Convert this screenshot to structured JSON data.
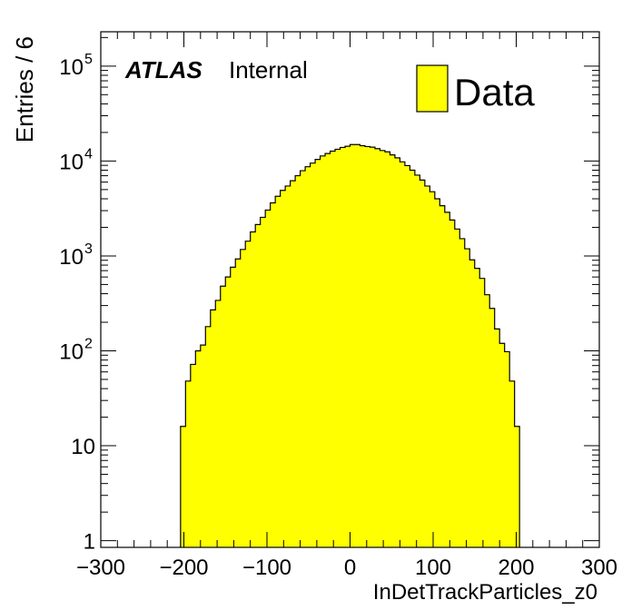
{
  "chart_data": {
    "type": "histogram",
    "ylabel": "Entries / 6",
    "xlabel": "InDetTrackParticles_z0",
    "atlas_label": "ATLAS",
    "atlas_sublabel": "Internal",
    "legend": {
      "label": "Data",
      "placement": "top-right"
    },
    "fill_color": "#ffff00",
    "line_color": "#000000",
    "xlim": [
      -300,
      300
    ],
    "ylim": [
      0.85,
      230000
    ],
    "yscale": "log",
    "grid": false,
    "x_ticks": [
      "−300",
      "−200",
      "−100",
      "0",
      "100",
      "200",
      "300"
    ],
    "y_ticks": [
      {
        "value": 1,
        "base": "1",
        "exp": ""
      },
      {
        "value": 10,
        "base": "10",
        "exp": ""
      },
      {
        "value": 100,
        "base": "10",
        "exp": "2"
      },
      {
        "value": 1000,
        "base": "10",
        "exp": "3"
      },
      {
        "value": 10000,
        "base": "10",
        "exp": "4"
      },
      {
        "value": 100000,
        "base": "10",
        "exp": "5"
      }
    ],
    "bin_width": 6,
    "x_start": -204,
    "values": [
      16,
      48,
      72,
      100,
      115,
      180,
      270,
      340,
      480,
      600,
      760,
      930,
      1170,
      1430,
      1790,
      2140,
      2550,
      3040,
      3620,
      4250,
      4900,
      5450,
      6190,
      7000,
      7900,
      8700,
      9500,
      10400,
      11300,
      12000,
      12700,
      13300,
      13900,
      14300,
      14900,
      14900,
      14500,
      14200,
      14000,
      13500,
      12900,
      12500,
      11600,
      10800,
      9800,
      8950,
      8000,
      7100,
      6300,
      5450,
      4750,
      4000,
      3380,
      2880,
      2390,
      1920,
      1520,
      1190,
      910,
      740,
      580,
      390,
      280,
      170,
      120,
      98,
      48,
      16
    ]
  }
}
